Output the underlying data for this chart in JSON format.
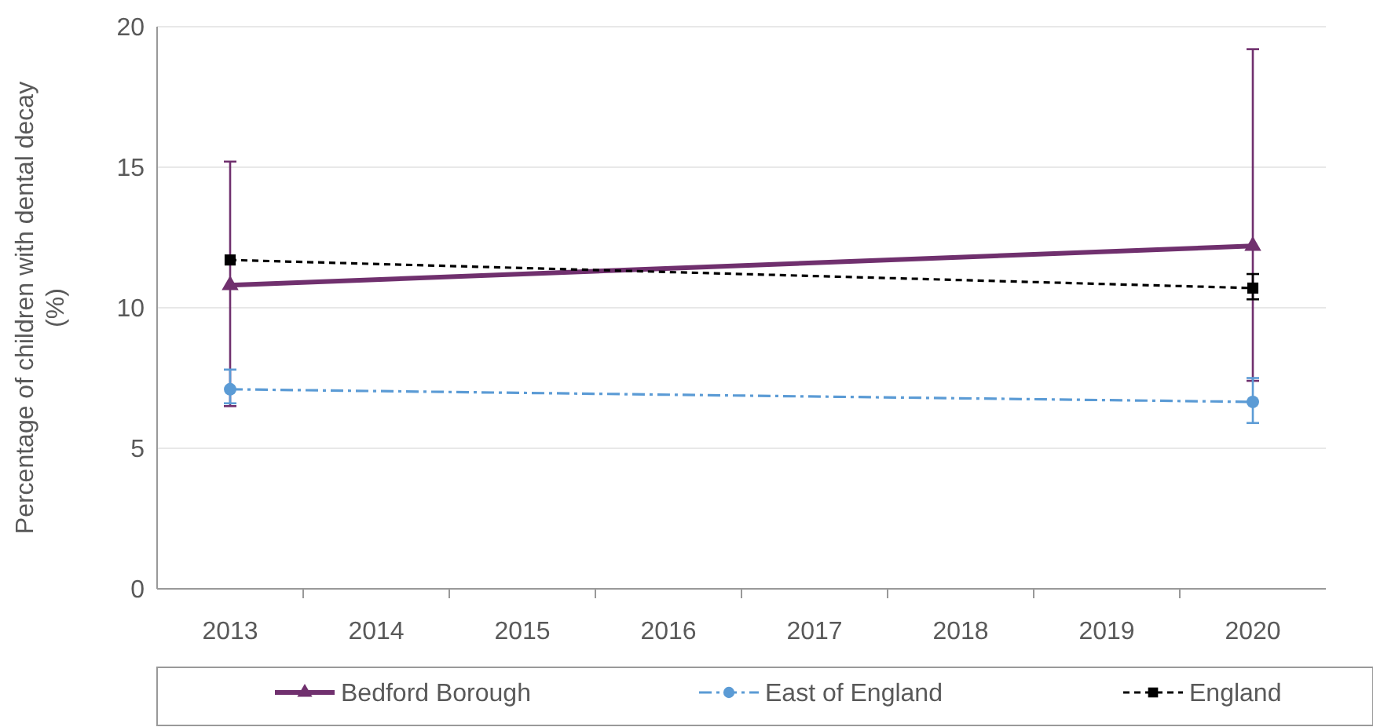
{
  "chart_data": {
    "type": "line",
    "ylabel": "Percentage of children with dental decay (%)",
    "x": [
      2013,
      2020
    ],
    "xlim": [
      2012.5,
      2020.5
    ],
    "xticks": [
      2013,
      {
        "value": 2013.5,
        "label": null
      },
      2014,
      {
        "value": 2014.5,
        "label": null
      },
      2015,
      {
        "value": 2015.5,
        "label": null
      },
      2016,
      {
        "value": 2016.5,
        "label": null
      },
      2017,
      {
        "value": 2017.5,
        "label": null
      },
      2018,
      {
        "value": 2018.5,
        "label": null
      },
      2019,
      {
        "value": 2019.5,
        "label": null
      },
      2020
    ],
    "ylim": [
      0,
      20
    ],
    "yticks": [
      0,
      5,
      10,
      15,
      20
    ],
    "grid": "y",
    "legend": "bottom",
    "series": [
      {
        "name": "Bedford Borough",
        "color": "#70306e",
        "values": [
          10.8,
          12.2
        ],
        "errors": [
          [
            6.5,
            15.2
          ],
          [
            7.4,
            19.2
          ]
        ],
        "marker": "triangle",
        "line_style": "solid"
      },
      {
        "name": "East of England",
        "color": "#5b9bd5",
        "values": [
          7.1,
          6.65
        ],
        "errors": [
          [
            6.6,
            7.8
          ],
          [
            5.9,
            7.5
          ]
        ],
        "marker": "circle",
        "line_style": "dashdot"
      },
      {
        "name": "England",
        "color": "#000000",
        "values": [
          11.7,
          10.7
        ],
        "errors": [
          null,
          [
            10.3,
            11.2
          ]
        ],
        "marker": "square",
        "line_style": "dashed"
      }
    ]
  }
}
